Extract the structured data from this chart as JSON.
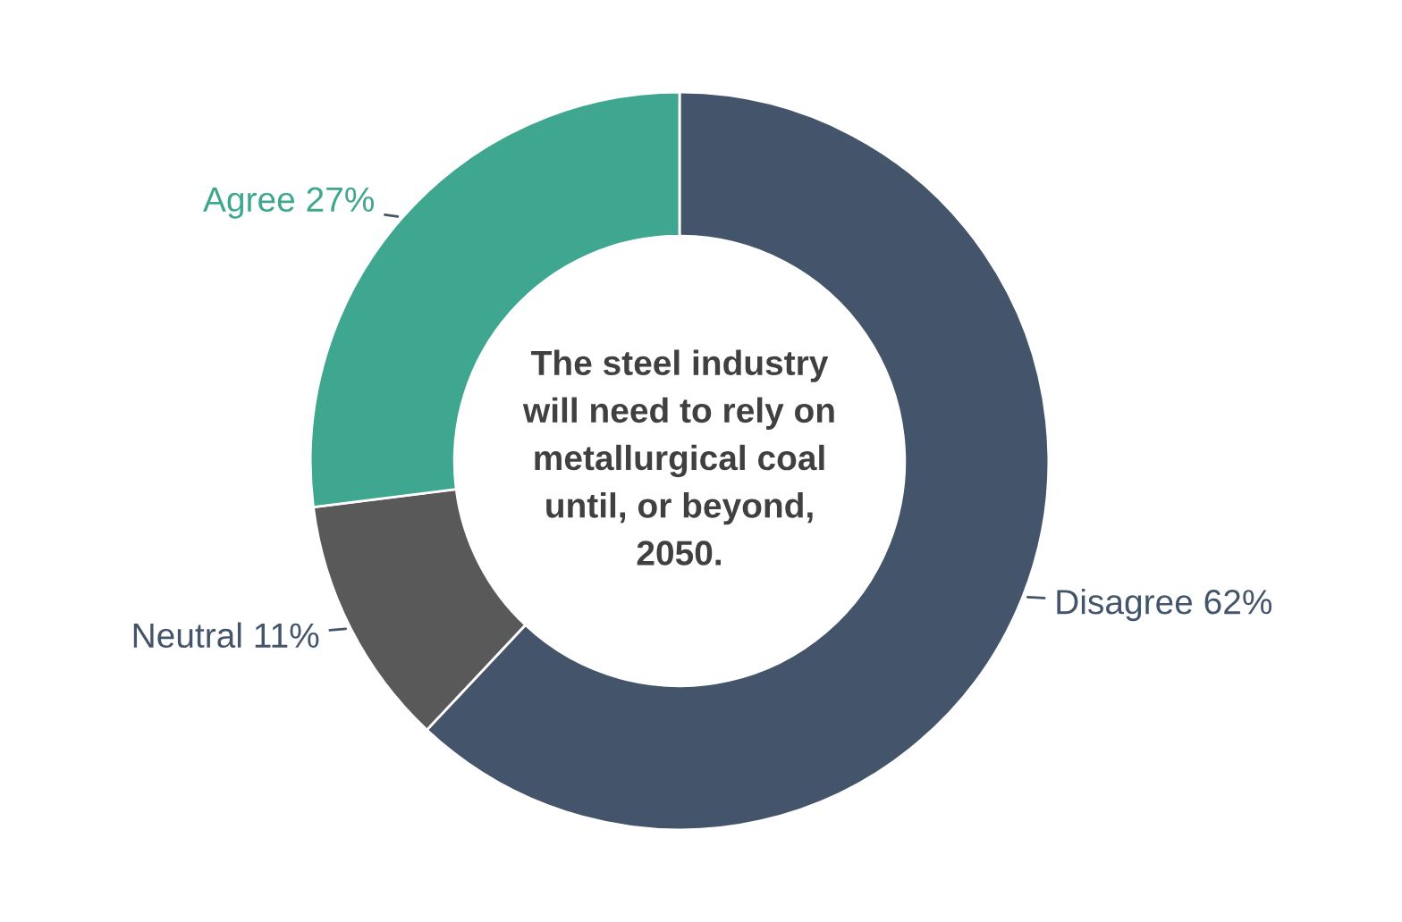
{
  "chart_data": {
    "type": "donut",
    "title": "The steel industry\nwill need to rely on\nmetallurgical coal\nuntil, or beyond,\n2050.",
    "categories": [
      "Disagree",
      "Neutral",
      "Agree"
    ],
    "values": [
      62,
      11,
      27
    ],
    "value_labels": [
      "62%",
      "11%",
      "27%"
    ],
    "colors": [
      "#44546a",
      "#595959",
      "#3fa78f"
    ]
  }
}
